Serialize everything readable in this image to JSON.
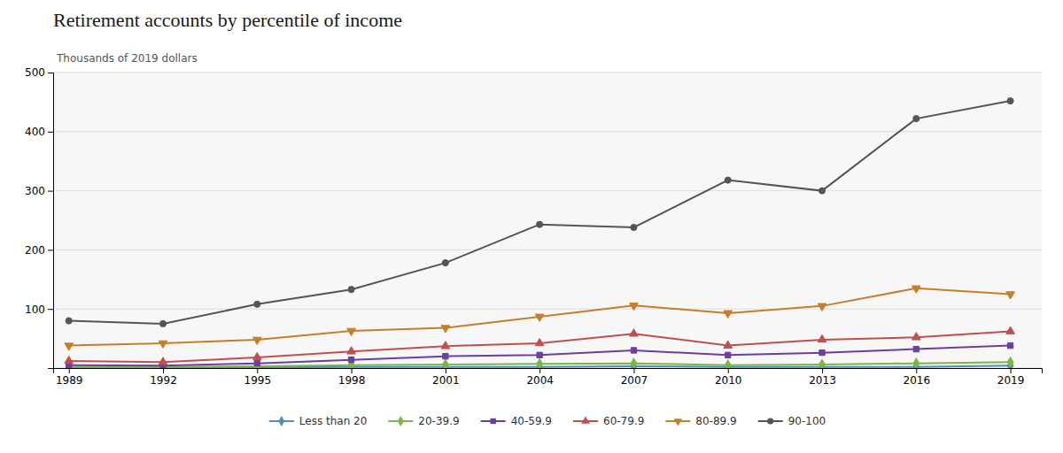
{
  "chart_data": {
    "type": "line",
    "title": "Retirement accounts by percentile of income",
    "subtitle": "Thousands of 2019 dollars",
    "x": [
      1989,
      1992,
      1995,
      1998,
      2001,
      2004,
      2007,
      2010,
      2013,
      2016,
      2019
    ],
    "series": [
      {
        "name": "Less than 20",
        "color": "#4a90b8",
        "marker": "diamond",
        "values": [
          1,
          1,
          1,
          2,
          2,
          2,
          3,
          2,
          2,
          2,
          4
        ]
      },
      {
        "name": "20-39.9",
        "color": "#7ab648",
        "marker": "diamond",
        "values": [
          2,
          2,
          3,
          5,
          6,
          7,
          8,
          5,
          6,
          8,
          10
        ]
      },
      {
        "name": "40-59.9",
        "color": "#6b3fa0",
        "marker": "square",
        "values": [
          5,
          4,
          8,
          14,
          20,
          22,
          30,
          22,
          26,
          32,
          38
        ]
      },
      {
        "name": "60-79.9",
        "color": "#c0504d",
        "marker": "triangle-up",
        "values": [
          12,
          10,
          18,
          28,
          37,
          42,
          58,
          38,
          48,
          52,
          62
        ]
      },
      {
        "name": "80-89.9",
        "color": "#c87d2a",
        "marker": "triangle-down",
        "values": [
          38,
          42,
          48,
          63,
          68,
          87,
          106,
          93,
          105,
          135,
          125
        ]
      },
      {
        "name": "90-100",
        "color": "#555555",
        "marker": "circle",
        "values": [
          80,
          75,
          108,
          133,
          178,
          243,
          238,
          318,
          300,
          422,
          452
        ]
      }
    ],
    "xlim": [
      1988.5,
      2020
    ],
    "xticks": [
      1989,
      1992,
      1995,
      1998,
      2001,
      2004,
      2007,
      2010,
      2013,
      2016,
      2019
    ],
    "ylim": [
      0,
      500
    ],
    "yticks": [
      {
        "value": 0,
        "label": null
      },
      100,
      200,
      300,
      400,
      500
    ],
    "grid": true,
    "legend": "bottom"
  }
}
